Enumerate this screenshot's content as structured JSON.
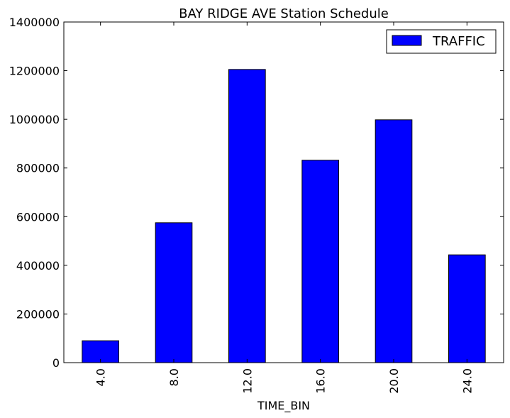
{
  "chart_data": {
    "type": "bar",
    "title": "BAY RIDGE AVE Station Schedule",
    "xlabel": "TIME_BIN",
    "ylabel": "",
    "categories": [
      "4.0",
      "8.0",
      "12.0",
      "16.0",
      "20.0",
      "24.0"
    ],
    "series": [
      {
        "name": "TRAFFIC",
        "color": "#0000ff",
        "values": [
          90000,
          575000,
          1205000,
          832000,
          998000,
          443000
        ]
      }
    ],
    "ylim": [
      0,
      1400000
    ],
    "yticks": [
      "0",
      "200000",
      "400000",
      "600000",
      "800000",
      "1000000",
      "1200000",
      "1400000"
    ],
    "grid": false,
    "legend_position": "top-right"
  }
}
